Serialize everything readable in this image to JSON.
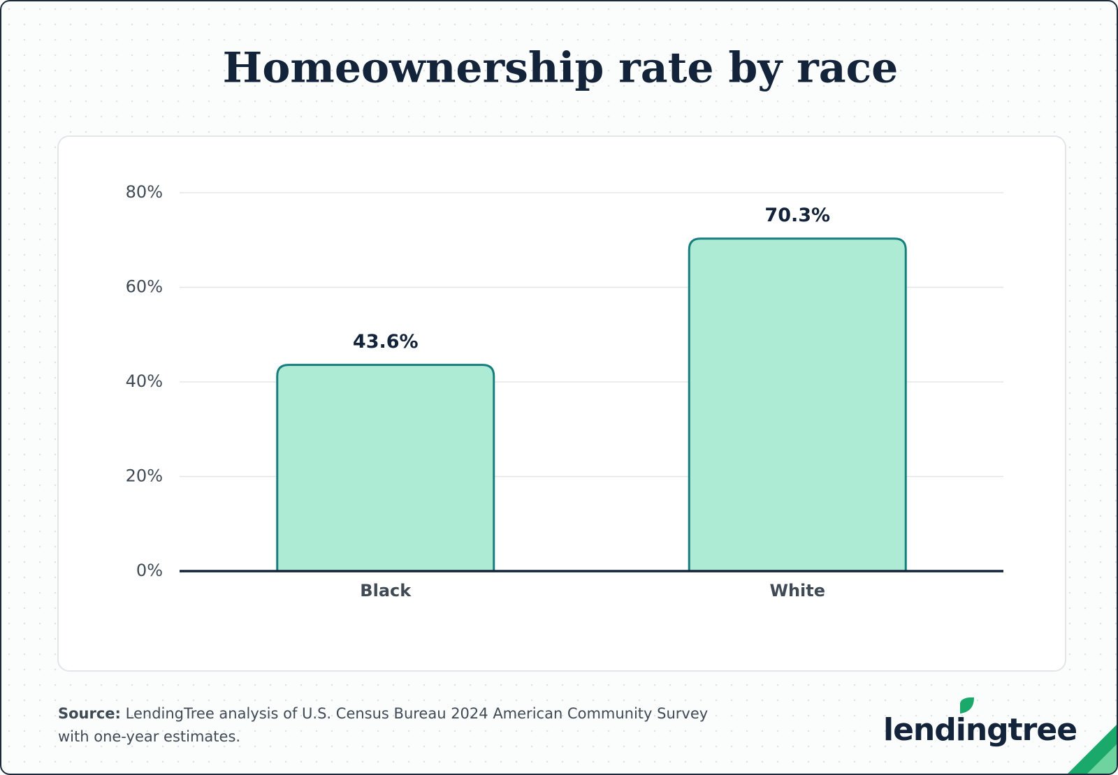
{
  "chart_data": {
    "type": "bar",
    "title": "Homeownership rate by race",
    "categories": [
      "Black",
      "White"
    ],
    "values": [
      43.6,
      70.3
    ],
    "value_labels": [
      "43.6%",
      "70.3%"
    ],
    "color": "#adebd4",
    "edge_color": "#167e7e",
    "ylim": [
      0,
      80
    ],
    "yticks": [
      {
        "value": 0,
        "label": "0%"
      },
      {
        "value": 20,
        "label": "20%"
      },
      {
        "value": 40,
        "label": "40%"
      },
      {
        "value": 60,
        "label": "60%"
      },
      {
        "value": 80,
        "label": "80%"
      }
    ],
    "grid": true
  },
  "footer": {
    "source_label": "Source:",
    "source_text": "LendingTree analysis of U.S. Census Bureau 2024 American Community Survey",
    "source_text_2": "with one-year estimates.",
    "brand": "lendingtree"
  }
}
